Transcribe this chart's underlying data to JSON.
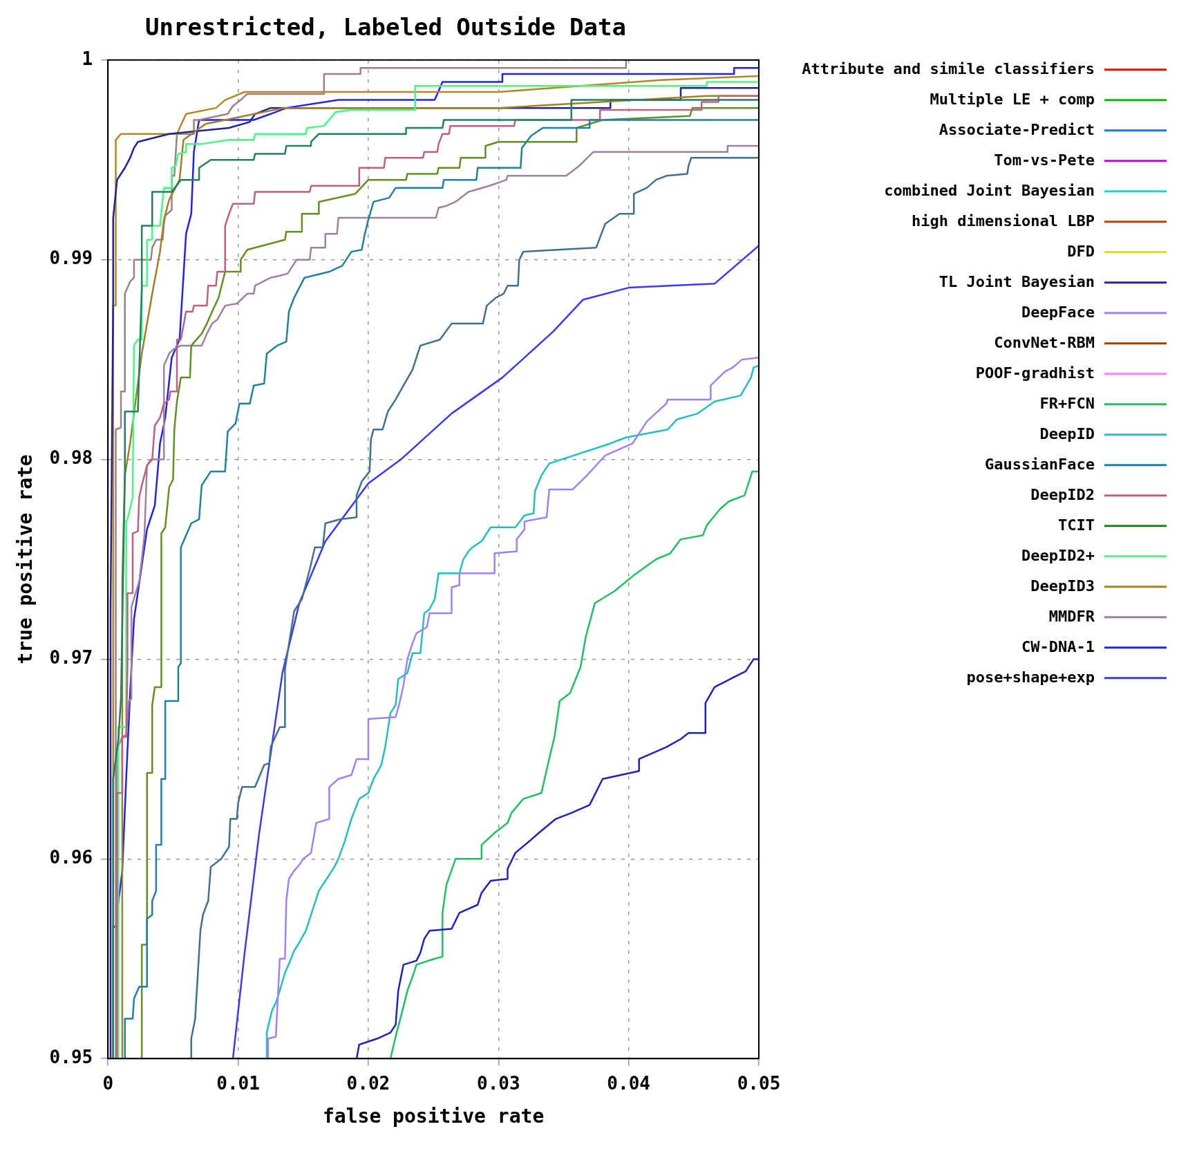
{
  "chart_data": {
    "type": "line",
    "title": "Unrestricted, Labeled Outside Data",
    "xlabel": "false positive rate",
    "ylabel": "true positive rate",
    "xlim": [
      0,
      0.05
    ],
    "ylim": [
      0.95,
      1
    ],
    "xticks": [
      0,
      0.01,
      0.02,
      0.03,
      0.04,
      0.05
    ],
    "yticks": [
      0.95,
      0.96,
      0.97,
      0.98,
      0.99,
      1
    ],
    "grid": true,
    "legend": "right",
    "series": [
      {
        "name": "Attribute and simile classifiers",
        "color": "#ff0000"
      },
      {
        "name": "Multiple LE + comp",
        "color": "#00c000"
      },
      {
        "name": "Associate-Predict",
        "color": "#0080ff"
      },
      {
        "name": "Tom-vs-Pete",
        "color": "#c000ff"
      },
      {
        "name": "combined Joint Bayesian",
        "color": "#00e0e0"
      },
      {
        "name": "high dimensional LBP",
        "color": "#c04000"
      },
      {
        "name": "DFD",
        "color": "#e0e000"
      },
      {
        "name": "TL Joint Bayesian",
        "color": "#2020c0",
        "x": [
          0.0191,
          0.0193,
          0.0207,
          0.0217,
          0.0221,
          0.0223,
          0.0227,
          0.0237,
          0.024,
          0.0243,
          0.0247,
          0.0264,
          0.027,
          0.0284,
          0.0287,
          0.0294,
          0.0307,
          0.0307,
          0.0313,
          0.0324,
          0.0331,
          0.0344,
          0.0356,
          0.037,
          0.038,
          0.0408,
          0.0408,
          0.0429,
          0.044,
          0.0446,
          0.0459,
          0.0459,
          0.0466,
          0.0481,
          0.049,
          0.0496,
          0.05
        ],
        "values": [
          0.95,
          0.9507,
          0.951,
          0.9513,
          0.9517,
          0.9534,
          0.9547,
          0.9549,
          0.9553,
          0.956,
          0.9564,
          0.9565,
          0.9573,
          0.9577,
          0.9583,
          0.9589,
          0.959,
          0.9595,
          0.9603,
          0.9609,
          0.9613,
          0.962,
          0.9623,
          0.9627,
          0.964,
          0.9644,
          0.965,
          0.9656,
          0.966,
          0.9663,
          0.9663,
          0.9678,
          0.9686,
          0.9691,
          0.9694,
          0.97,
          0.97
        ]
      },
      {
        "name": null,
        "color": "#208060",
        "x": [
          0.0004,
          0.0004,
          0.0008,
          0.001,
          0.0013,
          0.0013,
          0.0023,
          0.0026,
          0.0026,
          0.0034,
          0.0034,
          0.0049,
          0.0056,
          0.007,
          0.007,
          0.0079,
          0.0112,
          0.0113,
          0.0136,
          0.0137,
          0.0156,
          0.0156,
          0.0162,
          0.0229,
          0.0229,
          0.0257,
          0.0258,
          0.0356,
          0.0356,
          0.05
        ],
        "values": [
          0.95,
          0.964,
          0.966,
          0.968,
          0.9792,
          0.9824,
          0.9824,
          0.9886,
          0.9917,
          0.9917,
          0.9934,
          0.9934,
          0.994,
          0.994,
          0.9946,
          0.995,
          0.995,
          0.9953,
          0.9953,
          0.9957,
          0.9957,
          0.9959,
          0.9963,
          0.9963,
          0.9966,
          0.9966,
          0.997,
          0.997,
          0.998,
          0.998
        ]
      },
      {
        "name": "DeepFace",
        "color": "#a080ff",
        "x": [
          0.0123,
          0.0123,
          0.0129,
          0.0132,
          0.0136,
          0.0137,
          0.0139,
          0.0143,
          0.0147,
          0.015,
          0.0156,
          0.016,
          0.017,
          0.017,
          0.0177,
          0.0187,
          0.0191,
          0.02,
          0.02,
          0.0221,
          0.0224,
          0.0227,
          0.023,
          0.0234,
          0.0237,
          0.0245,
          0.0247,
          0.0264,
          0.0264,
          0.027,
          0.027,
          0.0297,
          0.0297,
          0.0314,
          0.0314,
          0.032,
          0.032,
          0.0337,
          0.0339,
          0.0357,
          0.0368,
          0.0382,
          0.0403,
          0.0414,
          0.0429,
          0.043,
          0.0463,
          0.0463,
          0.0474,
          0.048,
          0.0487,
          0.05
        ],
        "values": [
          0.95,
          0.951,
          0.9511,
          0.955,
          0.955,
          0.9579,
          0.959,
          0.9594,
          0.9597,
          0.96,
          0.9603,
          0.9618,
          0.962,
          0.9636,
          0.964,
          0.9642,
          0.965,
          0.965,
          0.967,
          0.9671,
          0.9678,
          0.9687,
          0.97,
          0.9708,
          0.9713,
          0.9716,
          0.9723,
          0.9723,
          0.9736,
          0.9737,
          0.9743,
          0.9743,
          0.9753,
          0.9754,
          0.976,
          0.9765,
          0.9769,
          0.9771,
          0.9785,
          0.9785,
          0.9792,
          0.9802,
          0.9808,
          0.9819,
          0.9828,
          0.983,
          0.983,
          0.9837,
          0.9844,
          0.9846,
          0.985,
          0.9851
        ]
      },
      {
        "name": "ConvNet-RBM",
        "color": "#a04000"
      },
      {
        "name": "POOF-gradhist",
        "color": "#ff80ff"
      },
      {
        "name": "FR+FCN",
        "color": "#20c060",
        "x": [
          0.0217,
          0.0221,
          0.0227,
          0.023,
          0.0234,
          0.0237,
          0.0251,
          0.0257,
          0.0257,
          0.026,
          0.0267,
          0.0287,
          0.0287,
          0.0297,
          0.0307,
          0.031,
          0.0319,
          0.0333,
          0.034,
          0.0343,
          0.0347,
          0.0355,
          0.0363,
          0.0367,
          0.0374,
          0.0389,
          0.0404,
          0.0421,
          0.0432,
          0.044,
          0.0457,
          0.046,
          0.047,
          0.0477,
          0.0489,
          0.0493,
          0.0495,
          0.05
        ],
        "values": [
          0.95,
          0.9511,
          0.9526,
          0.9534,
          0.9541,
          0.9547,
          0.955,
          0.9551,
          0.9573,
          0.9587,
          0.96,
          0.96,
          0.9607,
          0.9613,
          0.9618,
          0.9623,
          0.963,
          0.9633,
          0.9653,
          0.9661,
          0.9679,
          0.9683,
          0.9696,
          0.9711,
          0.9728,
          0.9734,
          0.9742,
          0.975,
          0.9753,
          0.976,
          0.9762,
          0.9767,
          0.9775,
          0.9779,
          0.9782,
          0.979,
          0.9794,
          0.9794
        ]
      },
      {
        "name": "DeepID",
        "color": "#20c0c0",
        "x": [
          0.0122,
          0.0122,
          0.0126,
          0.0129,
          0.0132,
          0.0136,
          0.014,
          0.0143,
          0.0146,
          0.0152,
          0.0162,
          0.0174,
          0.0177,
          0.0182,
          0.0187,
          0.0193,
          0.02,
          0.0204,
          0.021,
          0.0213,
          0.0217,
          0.0221,
          0.0223,
          0.023,
          0.0234,
          0.024,
          0.0243,
          0.0247,
          0.0251,
          0.0254,
          0.027,
          0.0273,
          0.0277,
          0.028,
          0.0287,
          0.0294,
          0.0313,
          0.032,
          0.0327,
          0.0328,
          0.0333,
          0.0339,
          0.0386,
          0.0398,
          0.043,
          0.0437,
          0.0453,
          0.0466,
          0.0486,
          0.0494,
          0.0496,
          0.05
        ],
        "values": [
          0.95,
          0.9513,
          0.9524,
          0.9528,
          0.9534,
          0.9543,
          0.9549,
          0.9554,
          0.9557,
          0.9564,
          0.9584,
          0.9596,
          0.96,
          0.9609,
          0.962,
          0.963,
          0.9633,
          0.964,
          0.9647,
          0.9656,
          0.9673,
          0.9677,
          0.969,
          0.9693,
          0.9703,
          0.9703,
          0.9723,
          0.9725,
          0.973,
          0.9743,
          0.9743,
          0.975,
          0.9754,
          0.9756,
          0.9759,
          0.9766,
          0.9766,
          0.9772,
          0.9773,
          0.9784,
          0.9792,
          0.9798,
          0.9808,
          0.9811,
          0.9815,
          0.982,
          0.9823,
          0.9829,
          0.9832,
          0.9841,
          0.9846,
          0.9847
        ]
      },
      {
        "name": "GaussianFace",
        "color": "#2080a0",
        "x": [
          0.0013,
          0.0013,
          0.0019,
          0.002,
          0.0024,
          0.003,
          0.003,
          0.0034,
          0.0034,
          0.0037,
          0.0037,
          0.0041,
          0.0041,
          0.0044,
          0.0044,
          0.0054,
          0.0054,
          0.0056,
          0.0056,
          0.0064,
          0.007,
          0.0072,
          0.0079,
          0.009,
          0.0092,
          0.0098,
          0.0101,
          0.0109,
          0.0112,
          0.012,
          0.0122,
          0.013,
          0.0137,
          0.0139,
          0.0143,
          0.0151,
          0.017,
          0.018,
          0.0183,
          0.0187,
          0.0195,
          0.0197,
          0.02,
          0.0204,
          0.0216,
          0.0221,
          0.0257,
          0.0258,
          0.0283,
          0.0284,
          0.0317,
          0.0318,
          0.0325,
          0.0334,
          0.037,
          0.037,
          0.05
        ],
        "values": [
          0.95,
          0.952,
          0.952,
          0.953,
          0.9536,
          0.9536,
          0.957,
          0.9572,
          0.9579,
          0.9584,
          0.9607,
          0.9607,
          0.964,
          0.964,
          0.9679,
          0.9679,
          0.9696,
          0.9698,
          0.9756,
          0.9768,
          0.977,
          0.9787,
          0.9794,
          0.9794,
          0.9814,
          0.9818,
          0.9828,
          0.9828,
          0.9837,
          0.9838,
          0.9853,
          0.9857,
          0.9859,
          0.9874,
          0.9881,
          0.9891,
          0.9894,
          0.9897,
          0.99,
          0.9904,
          0.9905,
          0.9912,
          0.992,
          0.9929,
          0.9931,
          0.9936,
          0.9936,
          0.994,
          0.994,
          0.9946,
          0.9946,
          0.9956,
          0.9962,
          0.9966,
          0.9966,
          0.997,
          0.997
        ]
      },
      {
        "name": "DeepID2",
        "color": "#c06080",
        "x": [
          0.0007,
          0.0007,
          0.0011,
          0.0011,
          0.0014,
          0.0015,
          0.0015,
          0.0019,
          0.0019,
          0.0023,
          0.0024,
          0.0026,
          0.003,
          0.0034,
          0.0036,
          0.004,
          0.0043,
          0.0047,
          0.0048,
          0.0053,
          0.0053,
          0.0056,
          0.006,
          0.0065,
          0.0066,
          0.0076,
          0.0077,
          0.0083,
          0.0084,
          0.009,
          0.009,
          0.0093,
          0.0096,
          0.0112,
          0.0113,
          0.0155,
          0.0156,
          0.0193,
          0.0193,
          0.0212,
          0.0213,
          0.0242,
          0.0243,
          0.0253,
          0.0254,
          0.0257,
          0.0262,
          0.0263,
          0.0312,
          0.0313,
          0.0378,
          0.0378,
          0.0456,
          0.0456,
          0.0469,
          0.0469,
          0.05
        ],
        "values": [
          0.95,
          0.9633,
          0.9633,
          0.9661,
          0.9661,
          0.9697,
          0.9733,
          0.9733,
          0.9763,
          0.9764,
          0.9781,
          0.9787,
          0.9797,
          0.98,
          0.9817,
          0.9821,
          0.9828,
          0.983,
          0.9834,
          0.9834,
          0.986,
          0.986,
          0.9874,
          0.9874,
          0.9877,
          0.9877,
          0.9887,
          0.9887,
          0.9894,
          0.9894,
          0.9917,
          0.9923,
          0.9928,
          0.9928,
          0.9934,
          0.9934,
          0.9937,
          0.9937,
          0.9946,
          0.9946,
          0.9951,
          0.9951,
          0.9954,
          0.9954,
          0.9958,
          0.9963,
          0.9963,
          0.9967,
          0.9967,
          0.997,
          0.997,
          0.9975,
          0.9975,
          0.9979,
          0.9979,
          0.9982,
          0.9982
        ]
      },
      {
        "name": "TCIT",
        "color": "#208020"
      },
      {
        "name": "DeepID2+",
        "color": "#40ff80",
        "x": [
          0.0008,
          0.0008,
          0.0014,
          0.0014,
          0.0015,
          0.0019,
          0.002,
          0.0023,
          0.0026,
          0.0026,
          0.003,
          0.003,
          0.0034,
          0.0034,
          0.004,
          0.0043,
          0.0049,
          0.0049,
          0.0052,
          0.0054,
          0.006,
          0.006,
          0.0072,
          0.0093,
          0.0112,
          0.0113,
          0.0152,
          0.0153,
          0.0166,
          0.0175,
          0.0187,
          0.0236,
          0.0236,
          0.046,
          0.046,
          0.05
        ],
        "values": [
          0.95,
          0.9666,
          0.9666,
          0.9769,
          0.977,
          0.9781,
          0.9857,
          0.986,
          0.986,
          0.9887,
          0.9887,
          0.991,
          0.991,
          0.9917,
          0.9917,
          0.9936,
          0.9936,
          0.9946,
          0.9947,
          0.9953,
          0.9954,
          0.9958,
          0.9958,
          0.996,
          0.996,
          0.9963,
          0.9963,
          0.9966,
          0.9967,
          0.9974,
          0.9975,
          0.9975,
          0.9987,
          0.9987,
          0.9989,
          0.9989
        ]
      },
      {
        "name": null,
        "color": "#407090",
        "x": [
          0.0064,
          0.0064,
          0.0067,
          0.0071,
          0.0073,
          0.0077,
          0.0079,
          0.0087,
          0.0093,
          0.0094,
          0.0099,
          0.01,
          0.0103,
          0.0113,
          0.012,
          0.0124,
          0.0125,
          0.0132,
          0.0136,
          0.0136,
          0.0143,
          0.0149,
          0.0155,
          0.0159,
          0.0165,
          0.0167,
          0.0178,
          0.0191,
          0.0191,
          0.0195,
          0.0201,
          0.0202,
          0.0204,
          0.0211,
          0.0215,
          0.0221,
          0.0227,
          0.0234,
          0.0238,
          0.024,
          0.0255,
          0.0264,
          0.0288,
          0.0291,
          0.0298,
          0.0304,
          0.0307,
          0.0315,
          0.0316,
          0.0319,
          0.0375,
          0.0382,
          0.0393,
          0.0404,
          0.0404,
          0.0414,
          0.0421,
          0.0429,
          0.0445,
          0.0446,
          0.0448,
          0.05
        ],
        "values": [
          0.95,
          0.951,
          0.952,
          0.9564,
          0.9572,
          0.9579,
          0.9596,
          0.96,
          0.9606,
          0.962,
          0.962,
          0.9628,
          0.9636,
          0.9636,
          0.9647,
          0.9648,
          0.9656,
          0.9666,
          0.9666,
          0.9695,
          0.9724,
          0.973,
          0.9745,
          0.9756,
          0.9756,
          0.9768,
          0.977,
          0.9771,
          0.9782,
          0.9789,
          0.9794,
          0.981,
          0.9815,
          0.9815,
          0.9824,
          0.983,
          0.9837,
          0.9845,
          0.9853,
          0.9857,
          0.986,
          0.9868,
          0.9868,
          0.9877,
          0.9881,
          0.9883,
          0.9887,
          0.9887,
          0.99,
          0.9904,
          0.9906,
          0.9918,
          0.9923,
          0.9923,
          0.9933,
          0.9936,
          0.994,
          0.9942,
          0.9943,
          0.9947,
          0.9951,
          0.9951
        ]
      },
      {
        "name": "DeepID3",
        "color": "#a08020",
        "x": [
          0.0011,
          0.0011,
          0.0013,
          0.0017,
          0.0026,
          0.0034,
          0.004,
          0.0043,
          0.0047,
          0.0055,
          0.0058,
          0.0075,
          0.0105,
          0.0135,
          0.03,
          0.046,
          0.05
        ],
        "values": [
          0.95,
          0.974,
          0.9792,
          0.9808,
          0.9853,
          0.9883,
          0.9904,
          0.992,
          0.993,
          0.994,
          0.996,
          0.9968,
          0.9972,
          0.9976,
          0.9976,
          0.9982,
          0.9982
        ]
      },
      {
        "name": null,
        "color": "#609020",
        "x": [
          0.0026,
          0.0026,
          0.003,
          0.003,
          0.0034,
          0.0034,
          0.0036,
          0.0041,
          0.0041,
          0.0044,
          0.0047,
          0.005,
          0.0051,
          0.0053,
          0.0056,
          0.0063,
          0.0064,
          0.0072,
          0.0076,
          0.008,
          0.0085,
          0.009,
          0.0102,
          0.0102,
          0.0107,
          0.0136,
          0.0137,
          0.0149,
          0.0149,
          0.0162,
          0.0162,
          0.019,
          0.02,
          0.0229,
          0.023,
          0.0253,
          0.0254,
          0.027,
          0.0271,
          0.029,
          0.029,
          0.03,
          0.036,
          0.036,
          0.038,
          0.0447,
          0.0449,
          0.05
        ],
        "values": [
          0.95,
          0.9557,
          0.9557,
          0.9643,
          0.9643,
          0.9677,
          0.9686,
          0.9686,
          0.9763,
          0.9766,
          0.9786,
          0.979,
          0.9815,
          0.9829,
          0.9841,
          0.9841,
          0.9857,
          0.9863,
          0.9868,
          0.9874,
          0.9881,
          0.9894,
          0.9894,
          0.99,
          0.9905,
          0.991,
          0.9914,
          0.9914,
          0.9923,
          0.9923,
          0.9929,
          0.9933,
          0.994,
          0.994,
          0.9943,
          0.9943,
          0.9946,
          0.9946,
          0.9951,
          0.9951,
          0.9957,
          0.9959,
          0.9959,
          0.9966,
          0.997,
          0.9972,
          0.9976,
          0.9976
        ]
      },
      {
        "name": null,
        "color": "#2020a0",
        "x": [
          0.0002,
          0.0002,
          0.0004,
          0.0004,
          0.0007,
          0.001,
          0.0013,
          0.0017,
          0.002,
          0.0023,
          0.0047,
          0.0093,
          0.0109,
          0.0113,
          0.0125,
          0.0137,
          0.0386,
          0.0386,
          0.044,
          0.044,
          0.05
        ],
        "values": [
          0.95,
          0.9725,
          0.988,
          0.9921,
          0.994,
          0.9943,
          0.9946,
          0.9951,
          0.9956,
          0.9959,
          0.9963,
          0.9966,
          0.9969,
          0.9973,
          0.9976,
          0.9976,
          0.9976,
          0.998,
          0.998,
          0.9986,
          0.9986
        ]
      },
      {
        "name": null,
        "color": "#b08a20",
        "x": [
          0.0004,
          0.0004,
          0.0006,
          0.0006,
          0.001,
          0.0053,
          0.006,
          0.0083,
          0.009,
          0.0105,
          0.03,
          0.0425,
          0.05
        ],
        "values": [
          0.95,
          0.9877,
          0.9877,
          0.996,
          0.9963,
          0.9963,
          0.9973,
          0.9976,
          0.998,
          0.9984,
          0.9984,
          0.999,
          0.9992
        ]
      },
      {
        "name": null,
        "color": "#a08080",
        "x": [
          0.0006,
          0.0006,
          0.001,
          0.001,
          0.0013,
          0.0013,
          0.0017,
          0.002,
          0.002,
          0.0033,
          0.0034,
          0.0037,
          0.0042,
          0.0043,
          0.0044,
          0.0049,
          0.0049,
          0.0051,
          0.0053,
          0.0066,
          0.0066,
          0.007,
          0.0092,
          0.0096,
          0.0102,
          0.0107,
          0.0166,
          0.0166,
          0.0194,
          0.0194,
          0.0398,
          0.0398,
          0.05
        ],
        "values": [
          0.95,
          0.9815,
          0.9816,
          0.9834,
          0.9834,
          0.9883,
          0.9889,
          0.9891,
          0.99,
          0.99,
          0.9906,
          0.991,
          0.991,
          0.9918,
          0.9922,
          0.9925,
          0.9942,
          0.9942,
          0.9963,
          0.9963,
          0.997,
          0.997,
          0.9973,
          0.9977,
          0.998,
          0.9983,
          0.9983,
          0.9993,
          0.9993,
          0.9996,
          0.9996,
          1,
          1
        ]
      },
      {
        "name": "MMDFR",
        "color": "#a080a0",
        "x": [
          0.0007,
          0.0007,
          0.0011,
          0.0014,
          0.0016,
          0.0018,
          0.0018,
          0.0024,
          0.0026,
          0.0028,
          0.003,
          0.0033,
          0.0043,
          0.0043,
          0.0047,
          0.005,
          0.0056,
          0.0072,
          0.0076,
          0.008,
          0.0084,
          0.009,
          0.0099,
          0.0107,
          0.0112,
          0.0113,
          0.0125,
          0.0132,
          0.0138,
          0.0145,
          0.0155,
          0.0156,
          0.0167,
          0.0167,
          0.0176,
          0.0177,
          0.0252,
          0.0254,
          0.026,
          0.0267,
          0.0277,
          0.0293,
          0.0306,
          0.0307,
          0.0352,
          0.0362,
          0.0373,
          0.0476,
          0.0476,
          0.05
        ],
        "values": [
          0.95,
          0.9655,
          0.9661,
          0.9662,
          0.9679,
          0.968,
          0.9726,
          0.9739,
          0.975,
          0.9762,
          0.9797,
          0.98,
          0.98,
          0.9847,
          0.9853,
          0.9855,
          0.9857,
          0.9857,
          0.9863,
          0.9868,
          0.987,
          0.9877,
          0.9878,
          0.9883,
          0.9883,
          0.9887,
          0.9891,
          0.9892,
          0.9893,
          0.99,
          0.99,
          0.9906,
          0.9906,
          0.9913,
          0.9913,
          0.9921,
          0.9921,
          0.9926,
          0.9927,
          0.9929,
          0.9934,
          0.9937,
          0.994,
          0.9942,
          0.9942,
          0.9947,
          0.9954,
          0.9954,
          0.9957,
          0.9957
        ]
      },
      {
        "name": "CW-DNA-1",
        "color": "#2020ff",
        "x": [
          0.0004,
          0.0004,
          0.0007,
          0.0007,
          0.0011,
          0.0014,
          0.0017,
          0.002,
          0.003,
          0.0036,
          0.004,
          0.0044,
          0.0049,
          0.0055,
          0.006,
          0.0064,
          0.0066,
          0.007,
          0.0112,
          0.0125,
          0.0137,
          0.0177,
          0.0251,
          0.0257,
          0.0303,
          0.0303,
          0.0481,
          0.0481,
          0.05
        ],
        "values": [
          0.95,
          0.9566,
          0.9566,
          0.9573,
          0.9594,
          0.964,
          0.9683,
          0.972,
          0.9765,
          0.9777,
          0.9808,
          0.9821,
          0.9851,
          0.986,
          0.9913,
          0.9923,
          0.9954,
          0.997,
          0.997,
          0.9973,
          0.9976,
          0.998,
          0.998,
          0.9989,
          0.9989,
          0.9993,
          0.9993,
          0.9996,
          0.9996
        ]
      },
      {
        "name": "pose+shape+exp",
        "color": "#3838ff",
        "x": [
          0.0096,
          0.0105,
          0.0116,
          0.0134,
          0.0147,
          0.0167,
          0.02,
          0.0225,
          0.0264,
          0.0303,
          0.0342,
          0.0365,
          0.04,
          0.0466,
          0.05
        ],
        "values": [
          0.95,
          0.9553,
          0.9612,
          0.9693,
          0.9728,
          0.9759,
          0.9788,
          0.98,
          0.9823,
          0.9841,
          0.9864,
          0.988,
          0.9886,
          0.9888,
          0.9907
        ]
      }
    ]
  }
}
